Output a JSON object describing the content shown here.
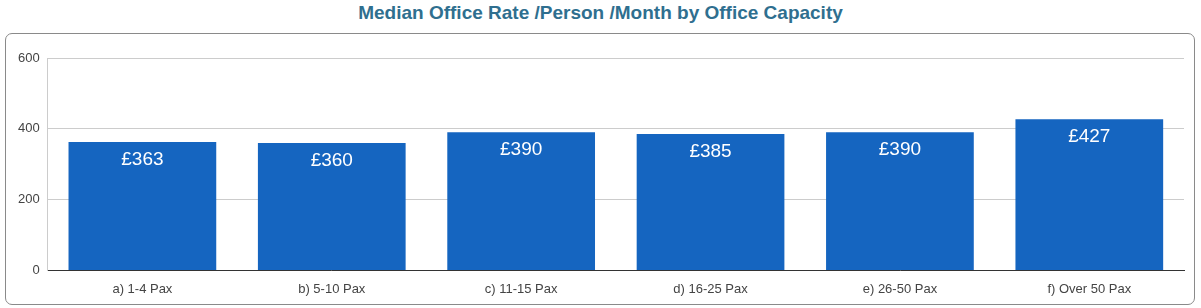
{
  "chart_data": {
    "type": "bar",
    "title": "Median Office Rate /Person /Month by Office Capacity",
    "categories": [
      "a) 1-4 Pax",
      "b) 5-10 Pax",
      "c) 11-15 Pax",
      "d) 16-25 Pax",
      "e) 26-50 Pax",
      "f) Over 50 Pax"
    ],
    "values": [
      363,
      360,
      390,
      385,
      390,
      427
    ],
    "value_labels": [
      "£363",
      "£360",
      "£390",
      "£385",
      "£390",
      "£427"
    ],
    "color": "#1565c0",
    "ylim": [
      0,
      600
    ],
    "yticks": [
      0,
      200,
      400,
      600
    ],
    "grid": true,
    "data_labels": true
  }
}
